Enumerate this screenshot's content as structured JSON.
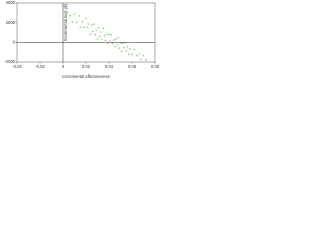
{
  "chart_data": {
    "type": "scatter",
    "x_label": "Incremental effectiveness",
    "y_label": "Incremental cost ($)",
    "xlim": [
      -0.04,
      0.08
    ],
    "xticks": [
      -0.04,
      -0.02,
      0,
      0.02,
      0.04,
      0.06,
      0.08
    ],
    "ylim": [
      -2000,
      4000
    ],
    "yticks": [
      -2000,
      0,
      2000,
      4000
    ],
    "series": [
      {
        "color": "#86c97a",
        "x": [
          0.004,
          0.008,
          0.01,
          0.012,
          0.014,
          0.015,
          0.017,
          0.018,
          0.02,
          0.021,
          0.022,
          0.024,
          0.025,
          0.026,
          0.027,
          0.028,
          0.029,
          0.03,
          0.031,
          0.032,
          0.033,
          0.034,
          0.035,
          0.036,
          0.037,
          0.038,
          0.039,
          0.04,
          0.041,
          0.042,
          0.043,
          0.044,
          0.045,
          0.046,
          0.047,
          0.048,
          0.049,
          0.05,
          0.051,
          0.052,
          0.053,
          0.054,
          0.055,
          0.056,
          0.057,
          0.058,
          0.06,
          0.062,
          0.064,
          0.066,
          0.068,
          0.07,
          0.072,
          0.002,
          0.006
        ],
        "values": [
          3040,
          2080,
          2850,
          2020,
          2690,
          1525,
          2095,
          1530,
          2400,
          1535,
          1870,
          840,
          1775,
          1110,
          1845,
          780,
          1215,
          350,
          1485,
          620,
          1055,
          290,
          1425,
          660,
          195,
          830,
          -135,
          800,
          135,
          770,
          -95,
          240,
          -425,
          310,
          -255,
          480,
          -585,
          -50,
          -915,
          -80,
          -545,
          -10,
          -875,
          -440,
          -1205,
          -670,
          -1200,
          -730,
          -1360,
          -1190,
          -1720,
          -1350,
          -1780,
          2570,
          2710
        ]
      }
    ]
  }
}
